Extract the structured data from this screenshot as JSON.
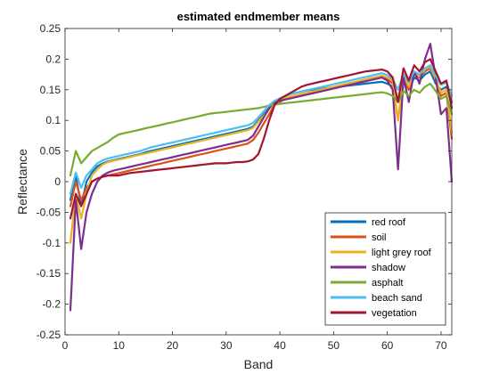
{
  "chart_data": {
    "type": "line",
    "title": "estimated endmember means",
    "xlabel": "Band",
    "ylabel": "Reflectance",
    "xlim": [
      0,
      72
    ],
    "ylim": [
      -0.25,
      0.25
    ],
    "xticks": [
      0,
      10,
      20,
      30,
      40,
      50,
      60,
      70
    ],
    "yticks": [
      -0.25,
      -0.2,
      -0.15,
      -0.1,
      -0.05,
      0,
      0.05,
      0.1,
      0.15,
      0.2,
      0.25
    ],
    "ytick_labels": [
      "-0.25",
      "-0.2",
      "-0.15",
      "-0.1",
      "-0.05",
      "0",
      "0.05",
      "0.1",
      "0.15",
      "0.2",
      "0.25"
    ],
    "grid": false,
    "legend_position": "bottom-right",
    "x": [
      1,
      2,
      3,
      4,
      5,
      6,
      7,
      8,
      9,
      10,
      11,
      12,
      13,
      14,
      15,
      16,
      17,
      18,
      19,
      20,
      21,
      22,
      23,
      24,
      25,
      26,
      27,
      28,
      29,
      30,
      31,
      32,
      33,
      34,
      35,
      36,
      37,
      38,
      39,
      40,
      41,
      42,
      43,
      44,
      45,
      46,
      47,
      48,
      49,
      50,
      51,
      52,
      53,
      54,
      55,
      56,
      57,
      58,
      59,
      60,
      61,
      62,
      63,
      64,
      65,
      66,
      67,
      68,
      69,
      70,
      71,
      72
    ],
    "series": [
      {
        "name": "red roof",
        "color": "#0072BD",
        "values": [
          -0.03,
          0.01,
          -0.04,
          0.0,
          0.015,
          0.025,
          0.03,
          0.033,
          0.035,
          0.037,
          0.039,
          0.041,
          0.043,
          0.045,
          0.048,
          0.05,
          0.052,
          0.054,
          0.056,
          0.058,
          0.06,
          0.062,
          0.064,
          0.066,
          0.068,
          0.07,
          0.072,
          0.074,
          0.076,
          0.078,
          0.08,
          0.082,
          0.084,
          0.086,
          0.09,
          0.1,
          0.11,
          0.12,
          0.13,
          0.135,
          0.14,
          0.143,
          0.145,
          0.147,
          0.149,
          0.15,
          0.151,
          0.152,
          0.153,
          0.154,
          0.155,
          0.156,
          0.157,
          0.158,
          0.159,
          0.16,
          0.161,
          0.162,
          0.163,
          0.16,
          0.155,
          0.13,
          0.165,
          0.15,
          0.17,
          0.165,
          0.175,
          0.18,
          0.16,
          0.15,
          0.155,
          0.13
        ]
      },
      {
        "name": "soil",
        "color": "#D95319",
        "values": [
          -0.04,
          0.0,
          -0.03,
          -0.01,
          0.0,
          0.005,
          0.008,
          0.01,
          0.012,
          0.014,
          0.016,
          0.018,
          0.02,
          0.022,
          0.024,
          0.026,
          0.028,
          0.03,
          0.032,
          0.034,
          0.036,
          0.038,
          0.04,
          0.042,
          0.044,
          0.046,
          0.048,
          0.05,
          0.052,
          0.054,
          0.056,
          0.058,
          0.06,
          0.062,
          0.068,
          0.08,
          0.095,
          0.11,
          0.125,
          0.13,
          0.135,
          0.138,
          0.14,
          0.142,
          0.144,
          0.146,
          0.148,
          0.15,
          0.152,
          0.154,
          0.156,
          0.158,
          0.16,
          0.162,
          0.164,
          0.166,
          0.168,
          0.17,
          0.172,
          0.168,
          0.16,
          0.1,
          0.17,
          0.15,
          0.175,
          0.17,
          0.18,
          0.185,
          0.165,
          0.14,
          0.145,
          0.07
        ]
      },
      {
        "name": "light grey roof",
        "color": "#EDB120",
        "values": [
          -0.1,
          -0.02,
          -0.06,
          -0.02,
          0.01,
          0.02,
          0.028,
          0.032,
          0.034,
          0.036,
          0.038,
          0.04,
          0.042,
          0.044,
          0.046,
          0.048,
          0.05,
          0.052,
          0.054,
          0.056,
          0.058,
          0.06,
          0.062,
          0.064,
          0.066,
          0.068,
          0.07,
          0.072,
          0.074,
          0.076,
          0.078,
          0.08,
          0.082,
          0.084,
          0.088,
          0.098,
          0.108,
          0.118,
          0.128,
          0.132,
          0.136,
          0.139,
          0.141,
          0.143,
          0.145,
          0.147,
          0.149,
          0.151,
          0.153,
          0.155,
          0.157,
          0.159,
          0.161,
          0.163,
          0.165,
          0.167,
          0.169,
          0.171,
          0.173,
          0.17,
          0.165,
          0.1,
          0.175,
          0.155,
          0.178,
          0.172,
          0.183,
          0.188,
          0.168,
          0.145,
          0.15,
          0.08
        ]
      },
      {
        "name": "shadow",
        "color": "#7E2F8E",
        "values": [
          -0.21,
          -0.03,
          -0.11,
          -0.05,
          -0.02,
          0.0,
          0.01,
          0.015,
          0.018,
          0.02,
          0.022,
          0.024,
          0.026,
          0.028,
          0.03,
          0.032,
          0.034,
          0.036,
          0.038,
          0.04,
          0.042,
          0.044,
          0.046,
          0.048,
          0.05,
          0.052,
          0.054,
          0.056,
          0.058,
          0.06,
          0.062,
          0.064,
          0.066,
          0.068,
          0.075,
          0.09,
          0.105,
          0.12,
          0.13,
          0.132,
          0.134,
          0.136,
          0.138,
          0.14,
          0.142,
          0.144,
          0.146,
          0.148,
          0.15,
          0.152,
          0.154,
          0.156,
          0.158,
          0.16,
          0.162,
          0.164,
          0.166,
          0.168,
          0.17,
          0.165,
          0.15,
          0.02,
          0.17,
          0.13,
          0.18,
          0.16,
          0.2,
          0.225,
          0.17,
          0.11,
          0.12,
          0.0
        ]
      },
      {
        "name": "asphalt",
        "color": "#77AC30",
        "values": [
          0.01,
          0.05,
          0.03,
          0.04,
          0.05,
          0.055,
          0.06,
          0.065,
          0.072,
          0.077,
          0.079,
          0.081,
          0.083,
          0.085,
          0.087,
          0.089,
          0.091,
          0.093,
          0.095,
          0.097,
          0.099,
          0.101,
          0.103,
          0.105,
          0.107,
          0.109,
          0.111,
          0.112,
          0.113,
          0.114,
          0.115,
          0.116,
          0.117,
          0.118,
          0.119,
          0.12,
          0.122,
          0.124,
          0.126,
          0.127,
          0.128,
          0.129,
          0.13,
          0.131,
          0.132,
          0.133,
          0.134,
          0.135,
          0.136,
          0.137,
          0.138,
          0.139,
          0.14,
          0.141,
          0.142,
          0.143,
          0.144,
          0.145,
          0.146,
          0.144,
          0.14,
          0.13,
          0.148,
          0.14,
          0.15,
          0.145,
          0.155,
          0.16,
          0.148,
          0.135,
          0.14,
          0.11
        ]
      },
      {
        "name": "beach sand",
        "color": "#4DBEEE",
        "values": [
          -0.02,
          0.015,
          -0.01,
          0.01,
          0.02,
          0.03,
          0.035,
          0.038,
          0.04,
          0.042,
          0.044,
          0.046,
          0.048,
          0.05,
          0.053,
          0.056,
          0.058,
          0.06,
          0.062,
          0.064,
          0.066,
          0.068,
          0.07,
          0.072,
          0.074,
          0.076,
          0.078,
          0.08,
          0.082,
          0.084,
          0.086,
          0.088,
          0.09,
          0.092,
          0.096,
          0.105,
          0.115,
          0.125,
          0.132,
          0.136,
          0.14,
          0.143,
          0.145,
          0.147,
          0.149,
          0.151,
          0.153,
          0.155,
          0.157,
          0.159,
          0.161,
          0.163,
          0.165,
          0.167,
          0.169,
          0.171,
          0.173,
          0.175,
          0.177,
          0.174,
          0.168,
          0.15,
          0.176,
          0.162,
          0.18,
          0.175,
          0.185,
          0.19,
          0.172,
          0.158,
          0.162,
          0.14
        ]
      },
      {
        "name": "vegetation",
        "color": "#A2142F",
        "values": [
          -0.06,
          -0.02,
          -0.04,
          -0.02,
          0.0,
          0.005,
          0.008,
          0.01,
          0.01,
          0.01,
          0.012,
          0.014,
          0.015,
          0.016,
          0.017,
          0.018,
          0.019,
          0.02,
          0.021,
          0.022,
          0.023,
          0.024,
          0.025,
          0.026,
          0.027,
          0.028,
          0.029,
          0.03,
          0.03,
          0.03,
          0.031,
          0.032,
          0.032,
          0.033,
          0.036,
          0.045,
          0.07,
          0.1,
          0.125,
          0.135,
          0.14,
          0.145,
          0.15,
          0.155,
          0.158,
          0.16,
          0.162,
          0.164,
          0.166,
          0.168,
          0.17,
          0.172,
          0.174,
          0.176,
          0.178,
          0.18,
          0.181,
          0.182,
          0.183,
          0.18,
          0.17,
          0.13,
          0.185,
          0.165,
          0.19,
          0.18,
          0.195,
          0.2,
          0.18,
          0.16,
          0.165,
          0.12
        ]
      }
    ]
  }
}
